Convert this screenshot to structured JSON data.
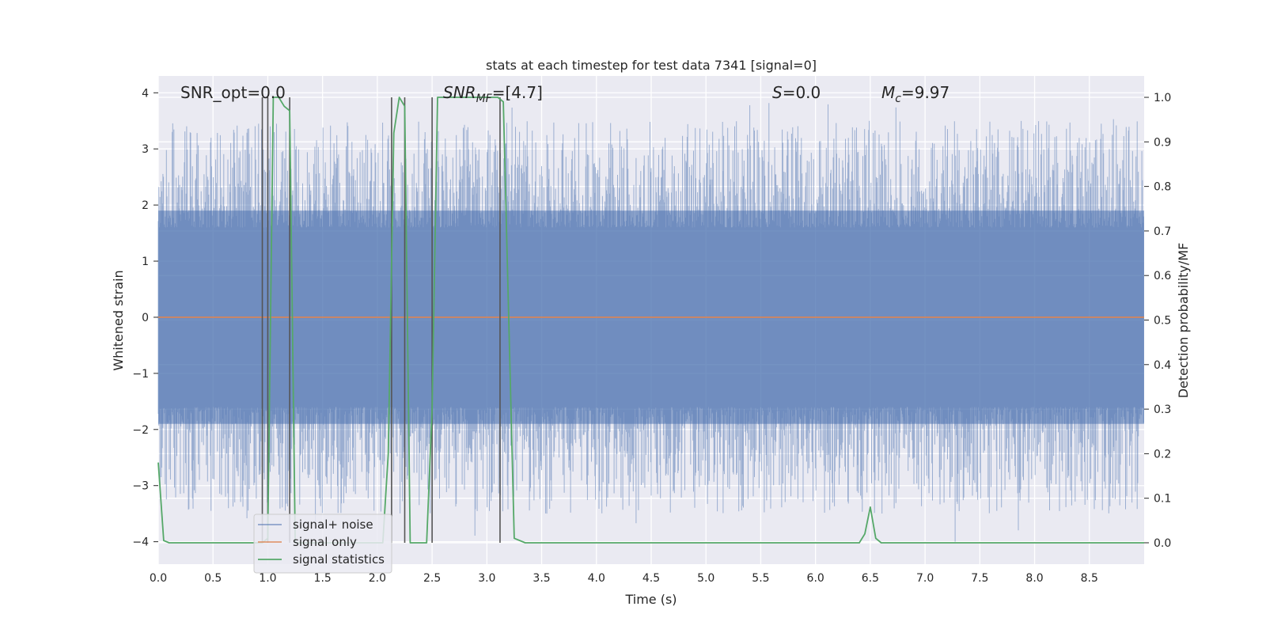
{
  "chart_data": {
    "type": "line",
    "title": "stats at each timestep for test data 7341 [signal=0]",
    "xlabel": "Time (s)",
    "ylabel": "Whitened strain",
    "ylabel_right": "Detection probability/MF",
    "xlim": [
      0.0,
      9.0
    ],
    "ylim": [
      -4.4,
      4.3
    ],
    "ylim_right": [
      -0.048,
      1.048
    ],
    "x_ticks": [
      "0.0",
      "0.5",
      "1.0",
      "1.5",
      "2.0",
      "2.5",
      "3.0",
      "3.5",
      "4.0",
      "4.5",
      "5.0",
      "5.5",
      "6.0",
      "6.5",
      "7.0",
      "7.5",
      "8.0",
      "8.5"
    ],
    "x_tick_values": [
      0.0,
      0.5,
      1.0,
      1.5,
      2.0,
      2.5,
      3.0,
      3.5,
      4.0,
      4.5,
      5.0,
      5.5,
      6.0,
      6.5,
      7.0,
      7.5,
      8.0,
      8.5
    ],
    "y_ticks": [
      "−4",
      "−3",
      "−2",
      "−1",
      "0",
      "1",
      "2",
      "3",
      "4"
    ],
    "y_tick_values": [
      -4,
      -3,
      -2,
      -1,
      0,
      1,
      2,
      3,
      4
    ],
    "y_ticks_right": [
      "0.0",
      "0.1",
      "0.2",
      "0.3",
      "0.4",
      "0.5",
      "0.6",
      "0.7",
      "0.8",
      "0.9",
      "1.0"
    ],
    "y_tick_values_right": [
      0.0,
      0.1,
      0.2,
      0.3,
      0.4,
      0.5,
      0.6,
      0.7,
      0.8,
      0.9,
      1.0
    ],
    "grid": true,
    "legend_position": "lower-left",
    "annotations": {
      "snr_opt": "SNR_opt=0.0",
      "snr_mf_sym": "SNR",
      "snr_mf_sub": "MF",
      "snr_mf_val": "=[4.7]",
      "s_sym": "S",
      "s_val": "=0.0",
      "mc_sym": "M",
      "mc_sub": "c",
      "mc_val": "=9.97"
    },
    "series": [
      {
        "name": "signal+ noise",
        "color": "#4c72b0",
        "band_envelope": {
          "upper": 1.9,
          "lower": -1.9,
          "peak_max": 3.9,
          "peak_min": -4.0
        }
      },
      {
        "name": "signal only",
        "color": "#dd8452",
        "x": [
          0.0,
          9.0
        ],
        "y": [
          0.0,
          0.0
        ]
      },
      {
        "name": "signal statistics",
        "color": "#55a868",
        "axis": "right",
        "x": [
          0.0,
          0.05,
          0.1,
          0.15,
          0.95,
          1.0,
          1.05,
          1.1,
          1.15,
          1.2,
          1.25,
          2.05,
          2.1,
          2.15,
          2.2,
          2.25,
          2.3,
          2.35,
          2.45,
          2.5,
          2.55,
          3.05,
          3.1,
          3.15,
          3.25,
          3.35,
          6.35,
          6.4,
          6.45,
          6.5,
          6.55,
          6.6,
          6.65,
          9.0
        ],
        "y": [
          0.18,
          0.005,
          0.0,
          0.0,
          0.0,
          0.01,
          1.0,
          1.0,
          0.98,
          0.97,
          0.0,
          0.0,
          0.2,
          0.92,
          1.0,
          0.98,
          0.0,
          0.0,
          0.0,
          0.3,
          1.0,
          1.0,
          1.0,
          0.99,
          0.01,
          0.0,
          0.0,
          0.0,
          0.02,
          0.08,
          0.01,
          0.0,
          0.0,
          0.0
        ]
      }
    ],
    "markers": {
      "color": "#555555",
      "x": [
        0.95,
        1.0,
        1.2,
        2.13,
        2.25,
        2.5,
        3.12
      ]
    }
  }
}
